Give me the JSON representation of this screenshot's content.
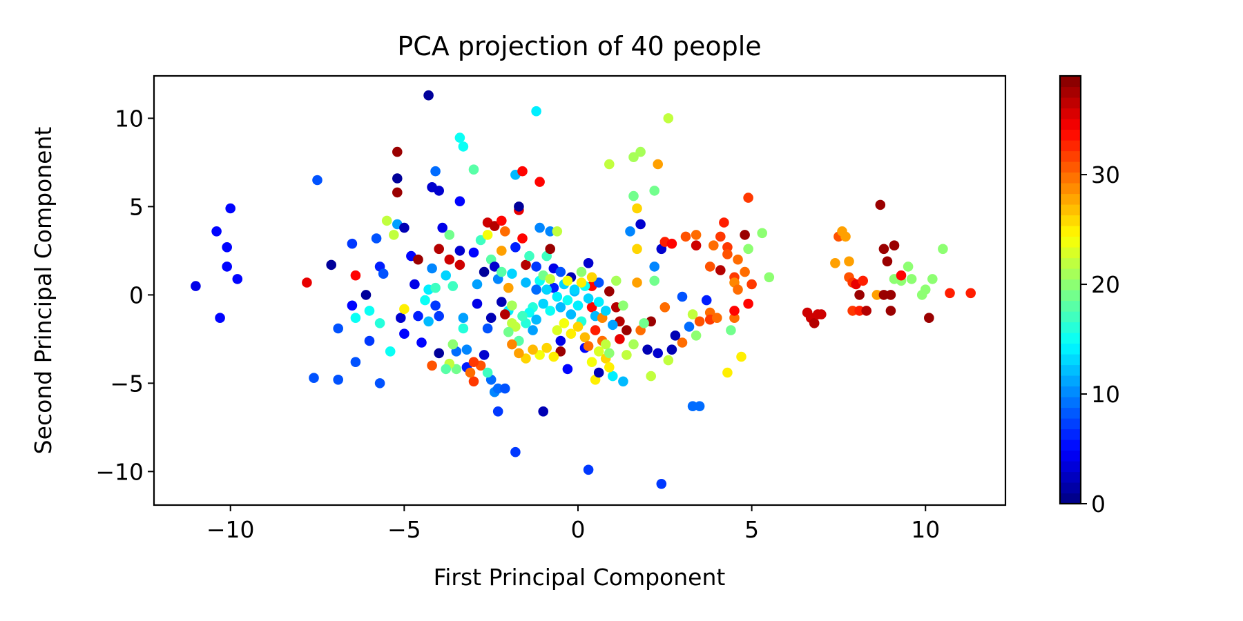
{
  "chart_data": {
    "type": "scatter",
    "title": "PCA projection of 40 people",
    "xlabel": "First Principal Component",
    "ylabel": "Second Principal Component",
    "xlim": [
      -12.2,
      12.3
    ],
    "ylim": [
      -11.9,
      12.4
    ],
    "xticks": [
      -10,
      -5,
      0,
      5,
      10
    ],
    "xtick_labels": [
      "−10",
      "−5",
      "0",
      "5",
      "10"
    ],
    "yticks": [
      -10,
      -5,
      0,
      5,
      10
    ],
    "ytick_labels": [
      "−10",
      "−5",
      "0",
      "5",
      "10"
    ],
    "grid": false,
    "colormap": "jet",
    "colorbar": {
      "vmin": 0,
      "vmax": 39,
      "ticks": [
        0,
        10,
        20,
        30
      ],
      "tick_labels": [
        "0",
        "10",
        "20",
        "30"
      ],
      "levels": 40
    },
    "points": [
      [
        -11.0,
        0.5,
        4
      ],
      [
        -10.4,
        3.6,
        5
      ],
      [
        -10.3,
        -1.3,
        5
      ],
      [
        -10.0,
        4.9,
        5
      ],
      [
        -10.1,
        2.7,
        5
      ],
      [
        -10.1,
        1.6,
        5
      ],
      [
        -9.8,
        0.9,
        5
      ],
      [
        -7.8,
        0.7,
        35
      ],
      [
        -7.5,
        6.5,
        8
      ],
      [
        -7.6,
        -4.7,
        8
      ],
      [
        -7.1,
        1.7,
        1
      ],
      [
        -6.9,
        -1.9,
        8
      ],
      [
        -6.9,
        -4.8,
        8
      ],
      [
        -6.5,
        2.9,
        7
      ],
      [
        -6.5,
        -0.6,
        5
      ],
      [
        -6.4,
        1.1,
        34
      ],
      [
        -6.4,
        -1.3,
        15
      ],
      [
        -6.4,
        -3.8,
        8
      ],
      [
        -6.1,
        0.0,
        1
      ],
      [
        -6.0,
        -2.6,
        7
      ],
      [
        -6.0,
        -0.9,
        15
      ],
      [
        -5.8,
        3.2,
        8
      ],
      [
        -5.7,
        1.6,
        6
      ],
      [
        -5.7,
        -1.6,
        16
      ],
      [
        -5.7,
        -5.0,
        8
      ],
      [
        -5.6,
        1.2,
        8
      ],
      [
        -5.5,
        4.2,
        22
      ],
      [
        -5.4,
        -3.2,
        15
      ],
      [
        -5.3,
        3.4,
        22
      ],
      [
        -5.2,
        4.0,
        11
      ],
      [
        -5.2,
        6.6,
        1
      ],
      [
        -5.2,
        8.1,
        38
      ],
      [
        -5.2,
        5.8,
        38
      ],
      [
        -5.1,
        -1.3,
        3
      ],
      [
        -5.0,
        -0.8,
        25
      ],
      [
        -5.0,
        3.8,
        2
      ],
      [
        -5.0,
        -2.2,
        5
      ],
      [
        -4.8,
        2.2,
        5
      ],
      [
        -4.7,
        0.6,
        4
      ],
      [
        -4.6,
        2.0,
        38
      ],
      [
        -4.5,
        -2.7,
        5
      ],
      [
        -4.3,
        11.3,
        1
      ],
      [
        -4.3,
        0.3,
        14
      ],
      [
        -4.2,
        6.1,
        3
      ],
      [
        -4.1,
        7.0,
        9
      ],
      [
        -4.0,
        5.9,
        3
      ],
      [
        -3.9,
        3.8,
        4
      ],
      [
        -4.0,
        2.6,
        37
      ],
      [
        -4.1,
        -0.6,
        7
      ],
      [
        -4.0,
        -3.3,
        1
      ],
      [
        -4.2,
        -4.0,
        31
      ],
      [
        -4.1,
        0.4,
        17
      ],
      [
        -3.7,
        3.4,
        19
      ],
      [
        -3.6,
        0.5,
        17
      ],
      [
        -3.5,
        -4.2,
        19
      ],
      [
        -3.4,
        8.9,
        15
      ],
      [
        -3.3,
        8.4,
        15
      ],
      [
        -3.4,
        5.3,
        5
      ],
      [
        -3.4,
        2.5,
        3
      ],
      [
        -3.4,
        1.7,
        36
      ],
      [
        -3.3,
        -1.9,
        16
      ],
      [
        -3.2,
        -3.1,
        10
      ],
      [
        -3.2,
        -4.1,
        6
      ],
      [
        -3.0,
        7.1,
        18
      ],
      [
        -2.9,
        0.6,
        11
      ],
      [
        -2.9,
        -0.5,
        4
      ],
      [
        -3.0,
        -4.9,
        32
      ],
      [
        -2.8,
        3.1,
        17
      ],
      [
        -2.6,
        3.4,
        24
      ],
      [
        -2.6,
        4.1,
        36
      ],
      [
        -2.5,
        2.0,
        18
      ],
      [
        -2.5,
        -1.3,
        2
      ],
      [
        -2.4,
        3.9,
        37
      ],
      [
        -2.4,
        -5.5,
        10
      ],
      [
        -2.3,
        -6.6,
        7
      ],
      [
        -2.2,
        4.2,
        34
      ],
      [
        -2.2,
        2.5,
        28
      ],
      [
        -2.1,
        3.6,
        30
      ],
      [
        -2.0,
        0.4,
        28
      ],
      [
        -2.0,
        -0.9,
        14
      ],
      [
        -1.9,
        -1.6,
        22
      ],
      [
        -1.8,
        -8.9,
        7
      ],
      [
        -1.8,
        6.8,
        12
      ],
      [
        -1.7,
        4.8,
        35
      ],
      [
        -1.7,
        5.0,
        1
      ],
      [
        -1.6,
        7.0,
        34
      ],
      [
        -1.6,
        3.2,
        34
      ],
      [
        -1.5,
        1.7,
        37
      ],
      [
        -1.4,
        2.2,
        17
      ],
      [
        -1.3,
        -0.7,
        16
      ],
      [
        -1.2,
        10.4,
        14
      ],
      [
        -1.1,
        6.4,
        34
      ],
      [
        -1.1,
        0.8,
        15
      ],
      [
        -1.1,
        3.8,
        10
      ],
      [
        -1.0,
        -6.6,
        2
      ],
      [
        -0.9,
        2.2,
        17
      ],
      [
        -0.8,
        3.6,
        10
      ],
      [
        -0.8,
        2.6,
        38
      ],
      [
        -0.7,
        1.5,
        4
      ],
      [
        -0.7,
        0.4,
        6
      ],
      [
        -0.6,
        3.6,
        22
      ],
      [
        -0.5,
        -2.6,
        4
      ],
      [
        -0.5,
        -3.2,
        38
      ],
      [
        -0.3,
        -4.2,
        5
      ],
      [
        -0.2,
        1.0,
        2
      ],
      [
        -0.1,
        0.2,
        12
      ],
      [
        0.1,
        1.3,
        20
      ],
      [
        0.2,
        -3.0,
        5
      ],
      [
        0.3,
        1.8,
        3
      ],
      [
        0.3,
        -9.9,
        7
      ],
      [
        0.4,
        0.5,
        34
      ],
      [
        0.4,
        -0.7,
        34
      ],
      [
        0.5,
        -4.8,
        25
      ],
      [
        0.6,
        -4.4,
        2
      ],
      [
        0.6,
        0.7,
        8
      ],
      [
        0.7,
        -2.6,
        30
      ],
      [
        0.8,
        -2.8,
        22
      ],
      [
        0.9,
        0.2,
        38
      ],
      [
        0.9,
        7.4,
        22
      ],
      [
        1.0,
        -4.6,
        14
      ],
      [
        1.1,
        -0.7,
        37
      ],
      [
        1.2,
        -1.5,
        37
      ],
      [
        1.2,
        -2.5,
        35
      ],
      [
        1.3,
        -4.9,
        12
      ],
      [
        1.4,
        -2.0,
        38
      ],
      [
        1.5,
        3.6,
        10
      ],
      [
        1.6,
        5.6,
        19
      ],
      [
        1.6,
        7.8,
        21
      ],
      [
        1.7,
        4.9,
        26
      ],
      [
        1.7,
        2.6,
        26
      ],
      [
        1.7,
        0.7,
        28
      ],
      [
        1.8,
        8.1,
        21
      ],
      [
        1.8,
        4.0,
        3
      ],
      [
        2.0,
        -3.1,
        2
      ],
      [
        2.1,
        -1.5,
        38
      ],
      [
        2.1,
        -4.6,
        22
      ],
      [
        2.2,
        5.9,
        19
      ],
      [
        2.2,
        1.6,
        10
      ],
      [
        2.2,
        0.8,
        19
      ],
      [
        2.3,
        -3.3,
        3
      ],
      [
        2.3,
        7.4,
        28
      ],
      [
        2.4,
        -10.7,
        7
      ],
      [
        2.4,
        2.6,
        3
      ],
      [
        2.5,
        3.0,
        33
      ],
      [
        2.5,
        -0.7,
        30
      ],
      [
        2.6,
        10.0,
        22
      ],
      [
        2.6,
        -3.7,
        22
      ],
      [
        2.7,
        -3.1,
        2
      ],
      [
        2.8,
        -2.3,
        2
      ],
      [
        2.7,
        2.9,
        34
      ],
      [
        3.0,
        -0.1,
        8
      ],
      [
        3.0,
        -2.7,
        30
      ],
      [
        3.1,
        3.3,
        31
      ],
      [
        3.2,
        -1.8,
        9
      ],
      [
        3.3,
        -1.1,
        22
      ],
      [
        3.3,
        -6.3,
        9
      ],
      [
        3.4,
        -2.3,
        20
      ],
      [
        3.4,
        3.4,
        30
      ],
      [
        3.4,
        2.8,
        36
      ],
      [
        3.5,
        -1.5,
        31
      ],
      [
        3.5,
        -6.3,
        9
      ],
      [
        3.7,
        -0.3,
        6
      ],
      [
        3.8,
        1.6,
        31
      ],
      [
        3.8,
        -1.0,
        30
      ],
      [
        3.8,
        -1.4,
        32
      ],
      [
        3.9,
        2.8,
        30
      ],
      [
        4.0,
        -1.3,
        30
      ],
      [
        4.1,
        1.4,
        37
      ],
      [
        4.1,
        3.3,
        32
      ],
      [
        4.2,
        4.1,
        33
      ],
      [
        4.3,
        2.7,
        32
      ],
      [
        4.3,
        2.3,
        31
      ],
      [
        4.3,
        -4.4,
        25
      ],
      [
        4.4,
        -2.0,
        19
      ],
      [
        4.5,
        -1.3,
        30
      ],
      [
        4.5,
        -0.9,
        34
      ],
      [
        4.5,
        1.0,
        32
      ],
      [
        4.5,
        0.7,
        29
      ],
      [
        4.6,
        0.3,
        30
      ],
      [
        4.6,
        2.0,
        30
      ],
      [
        4.7,
        -3.5,
        25
      ],
      [
        4.8,
        1.3,
        30
      ],
      [
        4.8,
        3.4,
        38
      ],
      [
        4.9,
        2.6,
        20
      ],
      [
        4.9,
        -0.5,
        34
      ],
      [
        4.9,
        5.5,
        32
      ],
      [
        5.0,
        0.6,
        32
      ],
      [
        5.3,
        3.5,
        20
      ],
      [
        5.5,
        1.0,
        20
      ],
      [
        6.6,
        -1.0,
        36
      ],
      [
        6.7,
        -1.3,
        36
      ],
      [
        6.8,
        -1.6,
        37
      ],
      [
        6.9,
        -1.1,
        36
      ],
      [
        7.0,
        -1.1,
        36
      ],
      [
        7.4,
        1.8,
        28
      ],
      [
        7.5,
        3.3,
        31
      ],
      [
        7.6,
        3.6,
        28
      ],
      [
        7.7,
        3.3,
        28
      ],
      [
        7.8,
        1.0,
        31
      ],
      [
        7.8,
        1.9,
        28
      ],
      [
        7.9,
        -0.9,
        32
      ],
      [
        7.9,
        0.7,
        32
      ],
      [
        8.0,
        0.6,
        35
      ],
      [
        8.1,
        -0.9,
        33
      ],
      [
        8.1,
        0.0,
        38
      ],
      [
        8.2,
        0.8,
        33
      ],
      [
        8.3,
        -0.9,
        37
      ],
      [
        8.6,
        0.0,
        28
      ],
      [
        8.7,
        5.1,
        38
      ],
      [
        8.8,
        2.6,
        38
      ],
      [
        8.8,
        0.0,
        38
      ],
      [
        8.9,
        1.9,
        38
      ],
      [
        9.0,
        0.0,
        38
      ],
      [
        9.0,
        -0.9,
        38
      ],
      [
        9.1,
        2.8,
        38
      ],
      [
        9.1,
        0.9,
        20
      ],
      [
        9.3,
        0.8,
        20
      ],
      [
        9.3,
        1.1,
        34
      ],
      [
        9.5,
        1.6,
        20
      ],
      [
        9.6,
        0.9,
        20
      ],
      [
        9.9,
        0.0,
        20
      ],
      [
        10.0,
        0.3,
        20
      ],
      [
        10.1,
        -1.3,
        38
      ],
      [
        10.2,
        0.9,
        20
      ],
      [
        10.5,
        2.6,
        20
      ],
      [
        10.7,
        0.1,
        33
      ],
      [
        11.3,
        0.1,
        33
      ],
      [
        -1.0,
        -0.5,
        13
      ],
      [
        -0.9,
        0.3,
        13
      ],
      [
        -0.8,
        -0.9,
        15
      ],
      [
        -0.6,
        -0.1,
        14
      ],
      [
        -0.5,
        -0.7,
        12
      ],
      [
        -0.4,
        0.6,
        13
      ],
      [
        -0.3,
        -0.3,
        15
      ],
      [
        -0.2,
        -1.1,
        12
      ],
      [
        -0.1,
        0.3,
        13
      ],
      [
        0.0,
        -0.6,
        14
      ],
      [
        0.1,
        -1.5,
        16
      ],
      [
        0.2,
        0.5,
        15
      ],
      [
        0.3,
        -0.2,
        13
      ],
      [
        0.5,
        -1.2,
        12
      ],
      [
        -1.2,
        -1.4,
        12
      ],
      [
        -1.3,
        -2.0,
        11
      ],
      [
        -1.4,
        -1.0,
        15
      ],
      [
        -1.5,
        -1.6,
        16
      ],
      [
        -1.6,
        -1.2,
        17
      ],
      [
        -1.7,
        -2.6,
        18
      ],
      [
        -1.8,
        -1.8,
        22
      ],
      [
        -1.9,
        -0.6,
        21
      ],
      [
        -2.0,
        -2.1,
        19
      ],
      [
        -0.6,
        -2.0,
        23
      ],
      [
        -0.4,
        -1.6,
        24
      ],
      [
        -0.2,
        -2.2,
        25
      ],
      [
        0.0,
        -1.8,
        26
      ],
      [
        0.2,
        -2.4,
        27
      ],
      [
        -1.1,
        -3.4,
        24
      ],
      [
        -0.9,
        -3.0,
        26
      ],
      [
        -0.7,
        -3.5,
        25
      ],
      [
        -1.3,
        -3.1,
        27
      ],
      [
        -1.5,
        -3.6,
        26
      ],
      [
        -1.7,
        -3.3,
        28
      ],
      [
        -1.9,
        -2.8,
        29
      ],
      [
        0.4,
        -3.8,
        24
      ],
      [
        0.6,
        -3.2,
        23
      ],
      [
        0.8,
        -3.6,
        26
      ],
      [
        0.9,
        -4.1,
        25
      ],
      [
        0.5,
        -2.0,
        33
      ],
      [
        0.3,
        -2.9,
        30
      ],
      [
        0.7,
        -1.3,
        29
      ],
      [
        -2.1,
        -1.1,
        37
      ],
      [
        -2.2,
        -0.4,
        2
      ],
      [
        -2.3,
        0.9,
        10
      ],
      [
        -1.5,
        0.7,
        12
      ],
      [
        -1.2,
        0.3,
        9
      ],
      [
        -1.0,
        1.1,
        19
      ],
      [
        -0.8,
        0.9,
        22
      ],
      [
        -0.5,
        1.3,
        8
      ],
      [
        -0.3,
        0.8,
        24
      ],
      [
        0.1,
        0.7,
        25
      ],
      [
        0.4,
        1.0,
        26
      ],
      [
        0.6,
        -0.4,
        14
      ],
      [
        0.8,
        -0.9,
        13
      ],
      [
        1.0,
        -1.7,
        11
      ],
      [
        1.1,
        0.8,
        21
      ],
      [
        1.3,
        -0.6,
        20
      ],
      [
        1.4,
        -3.4,
        22
      ],
      [
        1.6,
        -2.8,
        21
      ],
      [
        1.8,
        -2.0,
        30
      ],
      [
        1.9,
        -1.6,
        19
      ],
      [
        0.9,
        -3.3,
        20
      ],
      [
        -2.6,
        -1.9,
        8
      ],
      [
        -2.7,
        -3.4,
        3
      ],
      [
        -2.8,
        -4.0,
        31
      ],
      [
        -2.5,
        -4.8,
        9
      ],
      [
        -2.3,
        -5.3,
        9
      ],
      [
        -2.1,
        -5.3,
        8
      ],
      [
        -2.6,
        -4.4,
        17
      ],
      [
        -3.0,
        -3.8,
        32
      ],
      [
        -3.1,
        -4.4,
        30
      ],
      [
        -3.7,
        -3.9,
        22
      ],
      [
        -3.8,
        -4.2,
        18
      ],
      [
        -3.5,
        -3.2,
        9
      ],
      [
        -3.3,
        -1.3,
        11
      ],
      [
        -3.6,
        -2.8,
        20
      ],
      [
        -4.0,
        -1.2,
        7
      ],
      [
        -4.3,
        -1.5,
        12
      ],
      [
        -4.6,
        -1.2,
        6
      ],
      [
        -4.4,
        -0.3,
        15
      ],
      [
        -4.2,
        1.5,
        10
      ],
      [
        -3.8,
        1.1,
        13
      ],
      [
        -3.7,
        2.0,
        36
      ],
      [
        -3.0,
        2.4,
        5
      ],
      [
        -2.7,
        1.3,
        1
      ],
      [
        -2.4,
        1.6,
        3
      ],
      [
        -2.2,
        1.3,
        18
      ],
      [
        -1.9,
        1.2,
        13
      ],
      [
        -1.8,
        2.7,
        6
      ],
      [
        -1.2,
        1.6,
        7
      ]
    ]
  }
}
